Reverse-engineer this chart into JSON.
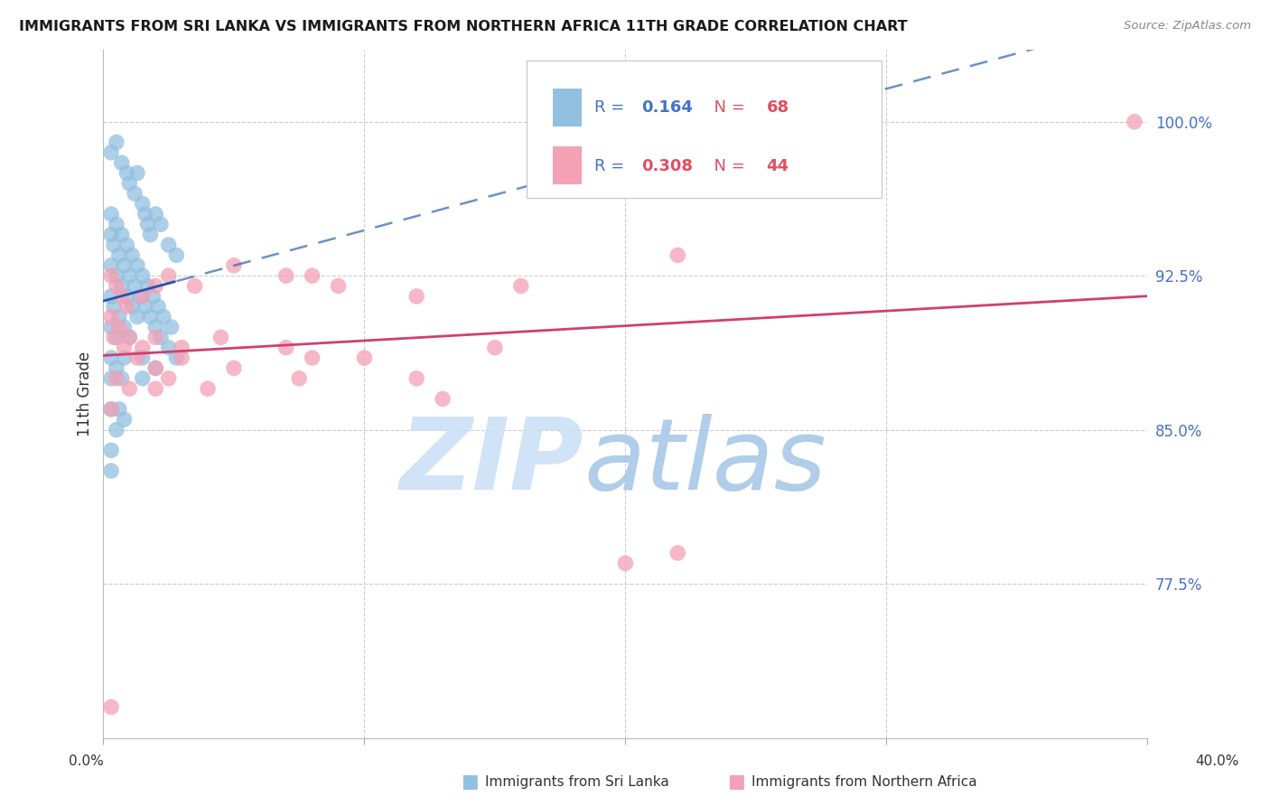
{
  "title": "IMMIGRANTS FROM SRI LANKA VS IMMIGRANTS FROM NORTHERN AFRICA 11TH GRADE CORRELATION CHART",
  "source": "Source: ZipAtlas.com",
  "ylabel": "11th Grade",
  "yticks": [
    77.5,
    85.0,
    92.5,
    100.0
  ],
  "ytick_labels": [
    "77.5%",
    "85.0%",
    "92.5%",
    "100.0%"
  ],
  "xlim": [
    0.0,
    40.0
  ],
  "ylim": [
    70.0,
    103.5
  ],
  "sri_lanka_color": "#92c0e0",
  "northern_africa_color": "#f4a0b5",
  "sri_lanka_trend_color": "#2255aa",
  "northern_africa_trend_color": "#d04070",
  "watermark_zip_color": "#cce0f5",
  "watermark_atlas_color": "#a8c8e8",
  "legend_blue_color": "#4472c4",
  "legend_red_color": "#e05060",
  "sri_lanka_x": [
    0.3,
    0.5,
    0.7,
    0.9,
    1.0,
    1.2,
    1.3,
    1.5,
    1.6,
    1.7,
    1.8,
    2.0,
    2.2,
    2.5,
    2.8,
    0.3,
    0.5,
    0.7,
    0.9,
    1.1,
    1.3,
    1.5,
    1.7,
    1.9,
    2.1,
    2.3,
    2.6,
    0.3,
    0.4,
    0.6,
    0.8,
    1.0,
    1.2,
    1.4,
    1.6,
    1.8,
    2.0,
    2.2,
    2.5,
    2.8,
    0.3,
    0.5,
    0.7,
    0.9,
    1.1,
    1.3,
    0.3,
    0.4,
    0.6,
    0.8,
    1.0,
    1.5,
    2.0,
    0.3,
    0.5,
    0.8,
    1.5,
    0.3,
    0.5,
    0.7,
    0.3,
    0.6,
    0.8,
    0.3,
    0.5,
    0.3,
    0.3
  ],
  "sri_lanka_y": [
    98.5,
    99.0,
    98.0,
    97.5,
    97.0,
    96.5,
    97.5,
    96.0,
    95.5,
    95.0,
    94.5,
    95.5,
    95.0,
    94.0,
    93.5,
    95.5,
    95.0,
    94.5,
    94.0,
    93.5,
    93.0,
    92.5,
    92.0,
    91.5,
    91.0,
    90.5,
    90.0,
    94.5,
    94.0,
    93.5,
    93.0,
    92.5,
    92.0,
    91.5,
    91.0,
    90.5,
    90.0,
    89.5,
    89.0,
    88.5,
    93.0,
    92.5,
    92.0,
    91.5,
    91.0,
    90.5,
    91.5,
    91.0,
    90.5,
    90.0,
    89.5,
    88.5,
    88.0,
    90.0,
    89.5,
    88.5,
    87.5,
    88.5,
    88.0,
    87.5,
    87.5,
    86.0,
    85.5,
    86.0,
    85.0,
    84.0,
    83.0
  ],
  "northern_africa_x": [
    0.3,
    0.5,
    0.7,
    0.9,
    1.5,
    2.0,
    2.5,
    3.5,
    5.0,
    7.0,
    9.0,
    12.0,
    16.0,
    22.0,
    0.3,
    0.6,
    1.0,
    1.5,
    2.0,
    3.0,
    4.5,
    7.0,
    10.0,
    15.0,
    0.4,
    0.8,
    1.3,
    2.0,
    3.0,
    5.0,
    8.0,
    12.0,
    0.5,
    1.0,
    2.5,
    4.0,
    7.5,
    13.0,
    0.3,
    2.0,
    8.0,
    20.0,
    39.5,
    0.3,
    22.0
  ],
  "northern_africa_y": [
    92.5,
    92.0,
    91.5,
    91.0,
    91.5,
    92.0,
    92.5,
    92.0,
    93.0,
    92.5,
    92.0,
    91.5,
    92.0,
    93.5,
    90.5,
    90.0,
    89.5,
    89.0,
    89.5,
    89.0,
    89.5,
    89.0,
    88.5,
    89.0,
    89.5,
    89.0,
    88.5,
    88.0,
    88.5,
    88.0,
    88.5,
    87.5,
    87.5,
    87.0,
    87.5,
    87.0,
    87.5,
    86.5,
    86.0,
    87.0,
    92.5,
    78.5,
    100.0,
    71.5,
    79.0
  ]
}
